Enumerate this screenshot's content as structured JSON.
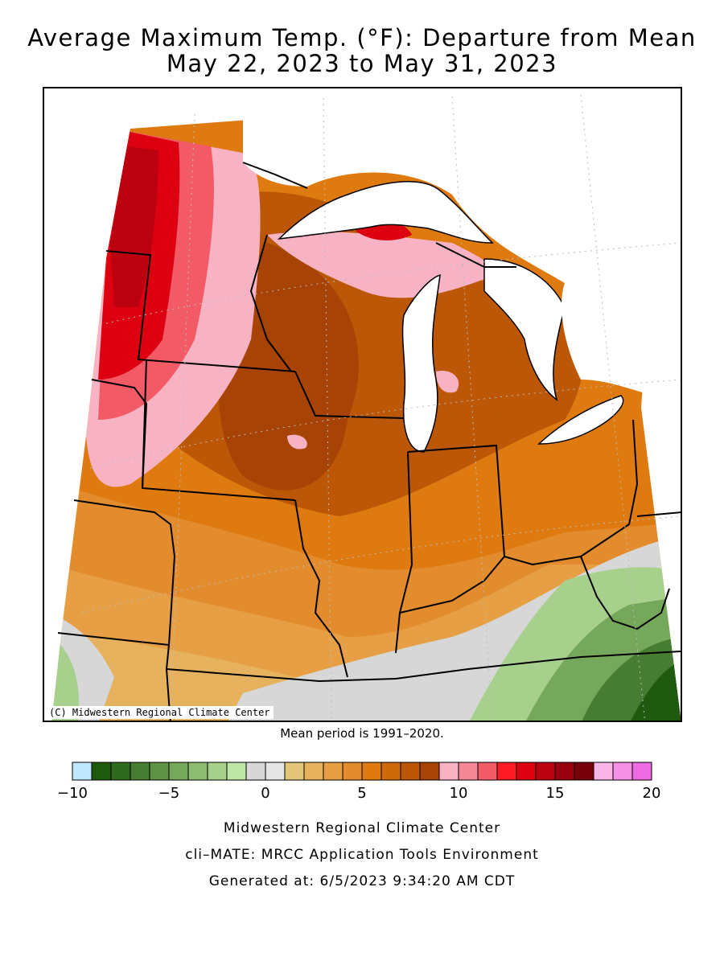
{
  "title": {
    "line1": "Average Maximum Temp. (°F): Departure from Mean",
    "line2": "May 22, 2023 to May 31, 2023"
  },
  "map": {
    "credit": "(C) Midwestern Regional Climate Center",
    "mean_period": "Mean period is 1991–2020."
  },
  "legend": {
    "tick_labels": [
      "−10",
      "−5",
      "0",
      "5",
      "10",
      "15",
      "20"
    ],
    "colors": [
      "#bfe8ff",
      "#1f5a10",
      "#2f6b1e",
      "#467d32",
      "#5e9246",
      "#76a85c",
      "#8dbb72",
      "#a6d08c",
      "#bde6a6",
      "#d7d7d7",
      "#e5e5e5",
      "#e4c67a",
      "#e6b25e",
      "#e69f45",
      "#e38c2d",
      "#df7a10",
      "#cf6a0b",
      "#bb5707",
      "#a74405",
      "#f7b3c3",
      "#f58796",
      "#f25a66",
      "#ff1a24",
      "#dd0010",
      "#bb0010",
      "#990010",
      "#77000a",
      "#f7b5e8",
      "#f590e5",
      "#ee6ae0"
    ]
  },
  "footer": {
    "line1": "Midwestern Regional Climate Center",
    "line2": "cli–MATE: MRCC Application Tools Environment",
    "line3": "Generated at: 6/5/2023 9:34:20 AM CDT"
  }
}
